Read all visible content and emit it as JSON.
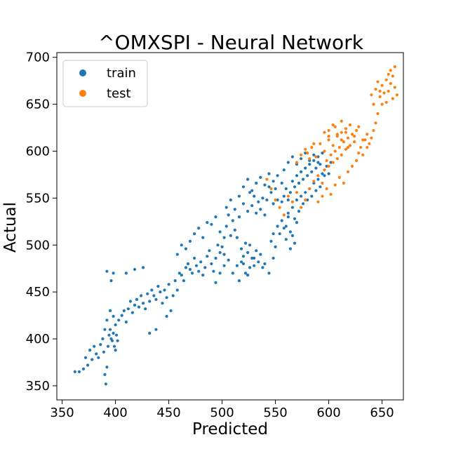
{
  "chart_data": {
    "type": "scatter",
    "title": "^OMXSPI - Neural Network",
    "xlabel": "Predicted",
    "ylabel": "Actual",
    "xlim": [
      345,
      670
    ],
    "ylim": [
      335,
      705
    ],
    "xticks": [
      350,
      400,
      450,
      500,
      550,
      600,
      650
    ],
    "yticks": [
      350,
      400,
      450,
      500,
      550,
      600,
      650,
      700
    ],
    "grid": false,
    "legend_position": "top-left",
    "series": [
      {
        "name": "train",
        "color": "#1f77b4",
        "points": [
          [
            362,
            365
          ],
          [
            366,
            365
          ],
          [
            370,
            368
          ],
          [
            372,
            380
          ],
          [
            374,
            372
          ],
          [
            376,
            388
          ],
          [
            378,
            378
          ],
          [
            380,
            392
          ],
          [
            382,
            384
          ],
          [
            384,
            380
          ],
          [
            386,
            394
          ],
          [
            388,
            400
          ],
          [
            389,
            386
          ],
          [
            390,
            362
          ],
          [
            391,
            352
          ],
          [
            392,
            370
          ],
          [
            393,
            392
          ],
          [
            394,
            404
          ],
          [
            395,
            410
          ],
          [
            396,
            400
          ],
          [
            397,
            398
          ],
          [
            398,
            406
          ],
          [
            399,
            392
          ],
          [
            400,
            388
          ],
          [
            401,
            404
          ],
          [
            402,
            398
          ],
          [
            390,
            410
          ],
          [
            392,
            420
          ],
          [
            395,
            430
          ],
          [
            398,
            424
          ],
          [
            392,
            472
          ],
          [
            398,
            470
          ],
          [
            396,
            462
          ],
          [
            400,
            415
          ],
          [
            403,
            420
          ],
          [
            406,
            425
          ],
          [
            408,
            430
          ],
          [
            410,
            418
          ],
          [
            412,
            432
          ],
          [
            414,
            440
          ],
          [
            416,
            428
          ],
          [
            418,
            436
          ],
          [
            420,
            442
          ],
          [
            422,
            434
          ],
          [
            424,
            446
          ],
          [
            426,
            438
          ],
          [
            428,
            432
          ],
          [
            430,
            448
          ],
          [
            432,
            440
          ],
          [
            434,
            452
          ],
          [
            436,
            446
          ],
          [
            438,
            442
          ],
          [
            440,
            456
          ],
          [
            442,
            450
          ],
          [
            444,
            438
          ],
          [
            446,
            452
          ],
          [
            448,
            444
          ],
          [
            450,
            458
          ],
          [
            410,
            470
          ],
          [
            418,
            474
          ],
          [
            426,
            476
          ],
          [
            432,
            406
          ],
          [
            438,
            410
          ],
          [
            448,
            424
          ],
          [
            452,
            430
          ],
          [
            454,
            446
          ],
          [
            456,
            462
          ],
          [
            458,
            452
          ],
          [
            460,
            470
          ],
          [
            462,
            468
          ],
          [
            464,
            462
          ],
          [
            466,
            476
          ],
          [
            468,
            480
          ],
          [
            470,
            474
          ],
          [
            472,
            470
          ],
          [
            474,
            486
          ],
          [
            476,
            478
          ],
          [
            478,
            472
          ],
          [
            480,
            482
          ],
          [
            482,
            468
          ],
          [
            484,
            476
          ],
          [
            486,
            488
          ],
          [
            488,
            494
          ],
          [
            490,
            480
          ],
          [
            492,
            472
          ],
          [
            494,
            486
          ],
          [
            496,
            500
          ],
          [
            498,
            492
          ],
          [
            500,
            498
          ],
          [
            502,
            490
          ],
          [
            458,
            490
          ],
          [
            462,
            500
          ],
          [
            466,
            496
          ],
          [
            470,
            504
          ],
          [
            474,
            512
          ],
          [
            478,
            518
          ],
          [
            482,
            508
          ],
          [
            486,
            524
          ],
          [
            490,
            522
          ],
          [
            494,
            530
          ],
          [
            498,
            514
          ],
          [
            502,
            508
          ],
          [
            504,
            520
          ],
          [
            506,
            532
          ],
          [
            508,
            510
          ],
          [
            510,
            526
          ],
          [
            512,
            516
          ],
          [
            514,
            508
          ],
          [
            516,
            530
          ],
          [
            518,
            496
          ],
          [
            520,
            488
          ],
          [
            522,
            502
          ],
          [
            524,
            492
          ],
          [
            526,
            500
          ],
          [
            528,
            486
          ],
          [
            530,
            478
          ],
          [
            532,
            494
          ],
          [
            534,
            482
          ],
          [
            536,
            490
          ],
          [
            538,
            476
          ],
          [
            494,
            460
          ],
          [
            498,
            470
          ],
          [
            502,
            478
          ],
          [
            506,
            484
          ],
          [
            510,
            470
          ],
          [
            514,
            478
          ],
          [
            518,
            482
          ],
          [
            522,
            470
          ],
          [
            526,
            476
          ],
          [
            530,
            486
          ],
          [
            504,
            540
          ],
          [
            508,
            548
          ],
          [
            512,
            538
          ],
          [
            516,
            552
          ],
          [
            520,
            544
          ],
          [
            524,
            536
          ],
          [
            526,
            556
          ],
          [
            528,
            542
          ],
          [
            530,
            552
          ],
          [
            532,
            534
          ],
          [
            534,
            546
          ],
          [
            536,
            538
          ],
          [
            538,
            550
          ],
          [
            540,
            532
          ],
          [
            542,
            548
          ],
          [
            544,
            562
          ],
          [
            546,
            556
          ],
          [
            548,
            544
          ],
          [
            550,
            560
          ],
          [
            552,
            548
          ],
          [
            520,
            562
          ],
          [
            524,
            570
          ],
          [
            528,
            558
          ],
          [
            532,
            566
          ],
          [
            536,
            572
          ],
          [
            540,
            564
          ],
          [
            544,
            576
          ],
          [
            548,
            568
          ],
          [
            552,
            574
          ],
          [
            556,
            566
          ],
          [
            546,
            504
          ],
          [
            548,
            512
          ],
          [
            550,
            498
          ],
          [
            552,
            520
          ],
          [
            554,
            512
          ],
          [
            556,
            526
          ],
          [
            558,
            518
          ],
          [
            560,
            506
          ],
          [
            562,
            530
          ],
          [
            564,
            514
          ],
          [
            556,
            546
          ],
          [
            558,
            552
          ],
          [
            560,
            560
          ],
          [
            562,
            548
          ],
          [
            564,
            556
          ],
          [
            566,
            568
          ],
          [
            568,
            562
          ],
          [
            570,
            574
          ],
          [
            572,
            566
          ],
          [
            574,
            578
          ],
          [
            576,
            570
          ],
          [
            578,
            582
          ],
          [
            580,
            574
          ],
          [
            582,
            586
          ],
          [
            584,
            578
          ],
          [
            586,
            590
          ],
          [
            588,
            582
          ],
          [
            590,
            594
          ],
          [
            592,
            586
          ],
          [
            594,
            576
          ],
          [
            558,
            580
          ],
          [
            562,
            588
          ],
          [
            566,
            594
          ],
          [
            570,
            586
          ],
          [
            574,
            592
          ],
          [
            578,
            598
          ],
          [
            582,
            590
          ],
          [
            586,
            596
          ],
          [
            590,
            588
          ],
          [
            594,
            598
          ],
          [
            560,
            520
          ],
          [
            562,
            534
          ],
          [
            566,
            540
          ],
          [
            568,
            528
          ],
          [
            570,
            548
          ],
          [
            572,
            536
          ],
          [
            574,
            552
          ],
          [
            576,
            544
          ],
          [
            578,
            556
          ],
          [
            580,
            548
          ],
          [
            582,
            560
          ],
          [
            584,
            552
          ],
          [
            586,
            566
          ],
          [
            588,
            558
          ],
          [
            590,
            570
          ],
          [
            592,
            562
          ],
          [
            596,
            574
          ],
          [
            598,
            584
          ],
          [
            600,
            576
          ],
          [
            602,
            588
          ],
          [
            566,
            510
          ],
          [
            568,
            502
          ],
          [
            570,
            524
          ],
          [
            564,
            496
          ],
          [
            540,
            480
          ],
          [
            544,
            470
          ],
          [
            548,
            486
          ],
          [
            520,
            480
          ],
          [
            524,
            468
          ],
          [
            516,
            462
          ]
        ]
      },
      {
        "name": "test",
        "color": "#ff7f0e",
        "points": [
          [
            542,
            570
          ],
          [
            546,
            560
          ],
          [
            550,
            548
          ],
          [
            554,
            540
          ],
          [
            558,
            532
          ],
          [
            562,
            552
          ],
          [
            566,
            546
          ],
          [
            570,
            556
          ],
          [
            574,
            540
          ],
          [
            578,
            548
          ],
          [
            582,
            560
          ],
          [
            586,
            568
          ],
          [
            590,
            574
          ],
          [
            594,
            566
          ],
          [
            596,
            580
          ],
          [
            598,
            590
          ],
          [
            600,
            584
          ],
          [
            602,
            596
          ],
          [
            604,
            588
          ],
          [
            606,
            600
          ],
          [
            608,
            592
          ],
          [
            610,
            604
          ],
          [
            612,
            596
          ],
          [
            614,
            610
          ],
          [
            616,
            602
          ],
          [
            618,
            614
          ],
          [
            620,
            606
          ],
          [
            622,
            618
          ],
          [
            624,
            610
          ],
          [
            626,
            622
          ],
          [
            580,
            598
          ],
          [
            584,
            604
          ],
          [
            588,
            594
          ],
          [
            592,
            608
          ],
          [
            596,
            600
          ],
          [
            600,
            612
          ],
          [
            604,
            606
          ],
          [
            608,
            618
          ],
          [
            612,
            612
          ],
          [
            616,
            624
          ],
          [
            590,
            546
          ],
          [
            594,
            552
          ],
          [
            598,
            560
          ],
          [
            602,
            554
          ],
          [
            606,
            564
          ],
          [
            610,
            572
          ],
          [
            614,
            566
          ],
          [
            618,
            578
          ],
          [
            622,
            584
          ],
          [
            626,
            590
          ],
          [
            628,
            598
          ],
          [
            630,
            604
          ],
          [
            632,
            596
          ],
          [
            634,
            612
          ],
          [
            636,
            618
          ],
          [
            638,
            608
          ],
          [
            640,
            614
          ],
          [
            642,
            622
          ],
          [
            644,
            630
          ],
          [
            646,
            640
          ],
          [
            640,
            660
          ],
          [
            644,
            666
          ],
          [
            648,
            658
          ],
          [
            650,
            670
          ],
          [
            652,
            662
          ],
          [
            654,
            652
          ],
          [
            656,
            664
          ],
          [
            658,
            672
          ],
          [
            660,
            656
          ],
          [
            662,
            668
          ],
          [
            664,
            660
          ],
          [
            660,
            680
          ],
          [
            658,
            686
          ],
          [
            662,
            690
          ],
          [
            646,
            674
          ],
          [
            642,
            650
          ],
          [
            650,
            650
          ],
          [
            654,
            676
          ],
          [
            656,
            682
          ],
          [
            648,
            664
          ],
          [
            600,
            622
          ],
          [
            604,
            628
          ],
          [
            608,
            616
          ],
          [
            612,
            632
          ],
          [
            616,
            620
          ],
          [
            620,
            628
          ],
          [
            624,
            616
          ],
          [
            628,
            626
          ],
          [
            632,
            612
          ],
          [
            636,
            604
          ],
          [
            570,
            588
          ],
          [
            574,
            596
          ],
          [
            578,
            602
          ],
          [
            582,
            592
          ],
          [
            586,
            608
          ],
          [
            596,
            620
          ],
          [
            600,
            616
          ],
          [
            606,
            626
          ],
          [
            612,
            620
          ],
          [
            618,
            604
          ]
        ]
      }
    ]
  }
}
